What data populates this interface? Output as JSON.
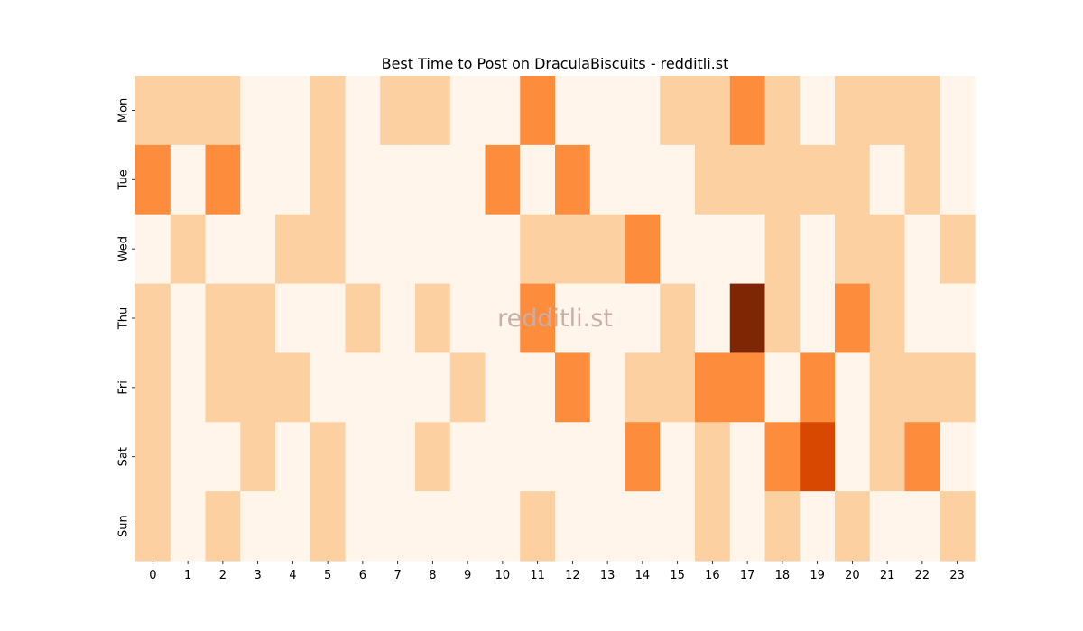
{
  "chart_data": {
    "type": "heatmap",
    "title": "Best Time to Post on DraculaBiscuits - redditli.st",
    "watermark": "redditli.st",
    "xlabel": "",
    "ylabel": "",
    "x_categories": [
      "0",
      "1",
      "2",
      "3",
      "4",
      "5",
      "6",
      "7",
      "8",
      "9",
      "10",
      "11",
      "12",
      "13",
      "14",
      "15",
      "16",
      "17",
      "18",
      "19",
      "20",
      "21",
      "22",
      "23"
    ],
    "y_categories": [
      "Mon",
      "Tue",
      "Wed",
      "Thu",
      "Fri",
      "Sat",
      "Sun"
    ],
    "values": [
      [
        1,
        1,
        1,
        0,
        0,
        1,
        0,
        1,
        1,
        0,
        0,
        2,
        0,
        0,
        0,
        1,
        1,
        2,
        1,
        0,
        1,
        1,
        1,
        0
      ],
      [
        2,
        0,
        2,
        0,
        0,
        1,
        0,
        0,
        0,
        0,
        2,
        0,
        2,
        0,
        0,
        0,
        1,
        1,
        1,
        1,
        1,
        0,
        1,
        0
      ],
      [
        0,
        1,
        0,
        0,
        1,
        1,
        0,
        0,
        0,
        0,
        0,
        1,
        1,
        1,
        2,
        0,
        0,
        0,
        1,
        0,
        1,
        1,
        0,
        1
      ],
      [
        1,
        0,
        1,
        1,
        0,
        0,
        1,
        0,
        1,
        0,
        0,
        2,
        0,
        0,
        0,
        1,
        0,
        5,
        1,
        0,
        2,
        1,
        0,
        0
      ],
      [
        1,
        0,
        1,
        1,
        1,
        0,
        0,
        0,
        0,
        1,
        0,
        0,
        2,
        0,
        1,
        1,
        2,
        2,
        0,
        2,
        0,
        1,
        1,
        1
      ],
      [
        1,
        0,
        0,
        1,
        0,
        1,
        0,
        0,
        1,
        0,
        0,
        0,
        0,
        0,
        2,
        0,
        1,
        0,
        2,
        4,
        0,
        1,
        2,
        0
      ],
      [
        1,
        0,
        1,
        0,
        0,
        1,
        0,
        0,
        0,
        0,
        0,
        1,
        0,
        0,
        0,
        0,
        1,
        0,
        1,
        0,
        1,
        0,
        0,
        1
      ]
    ],
    "colormap": "Oranges",
    "level_colors": [
      "#fff5eb",
      "#fdd0a2",
      "#fd8d3c",
      "#fd8d3c",
      "#d94801",
      "#7f2704"
    ],
    "colorbar": false,
    "grid": false
  }
}
